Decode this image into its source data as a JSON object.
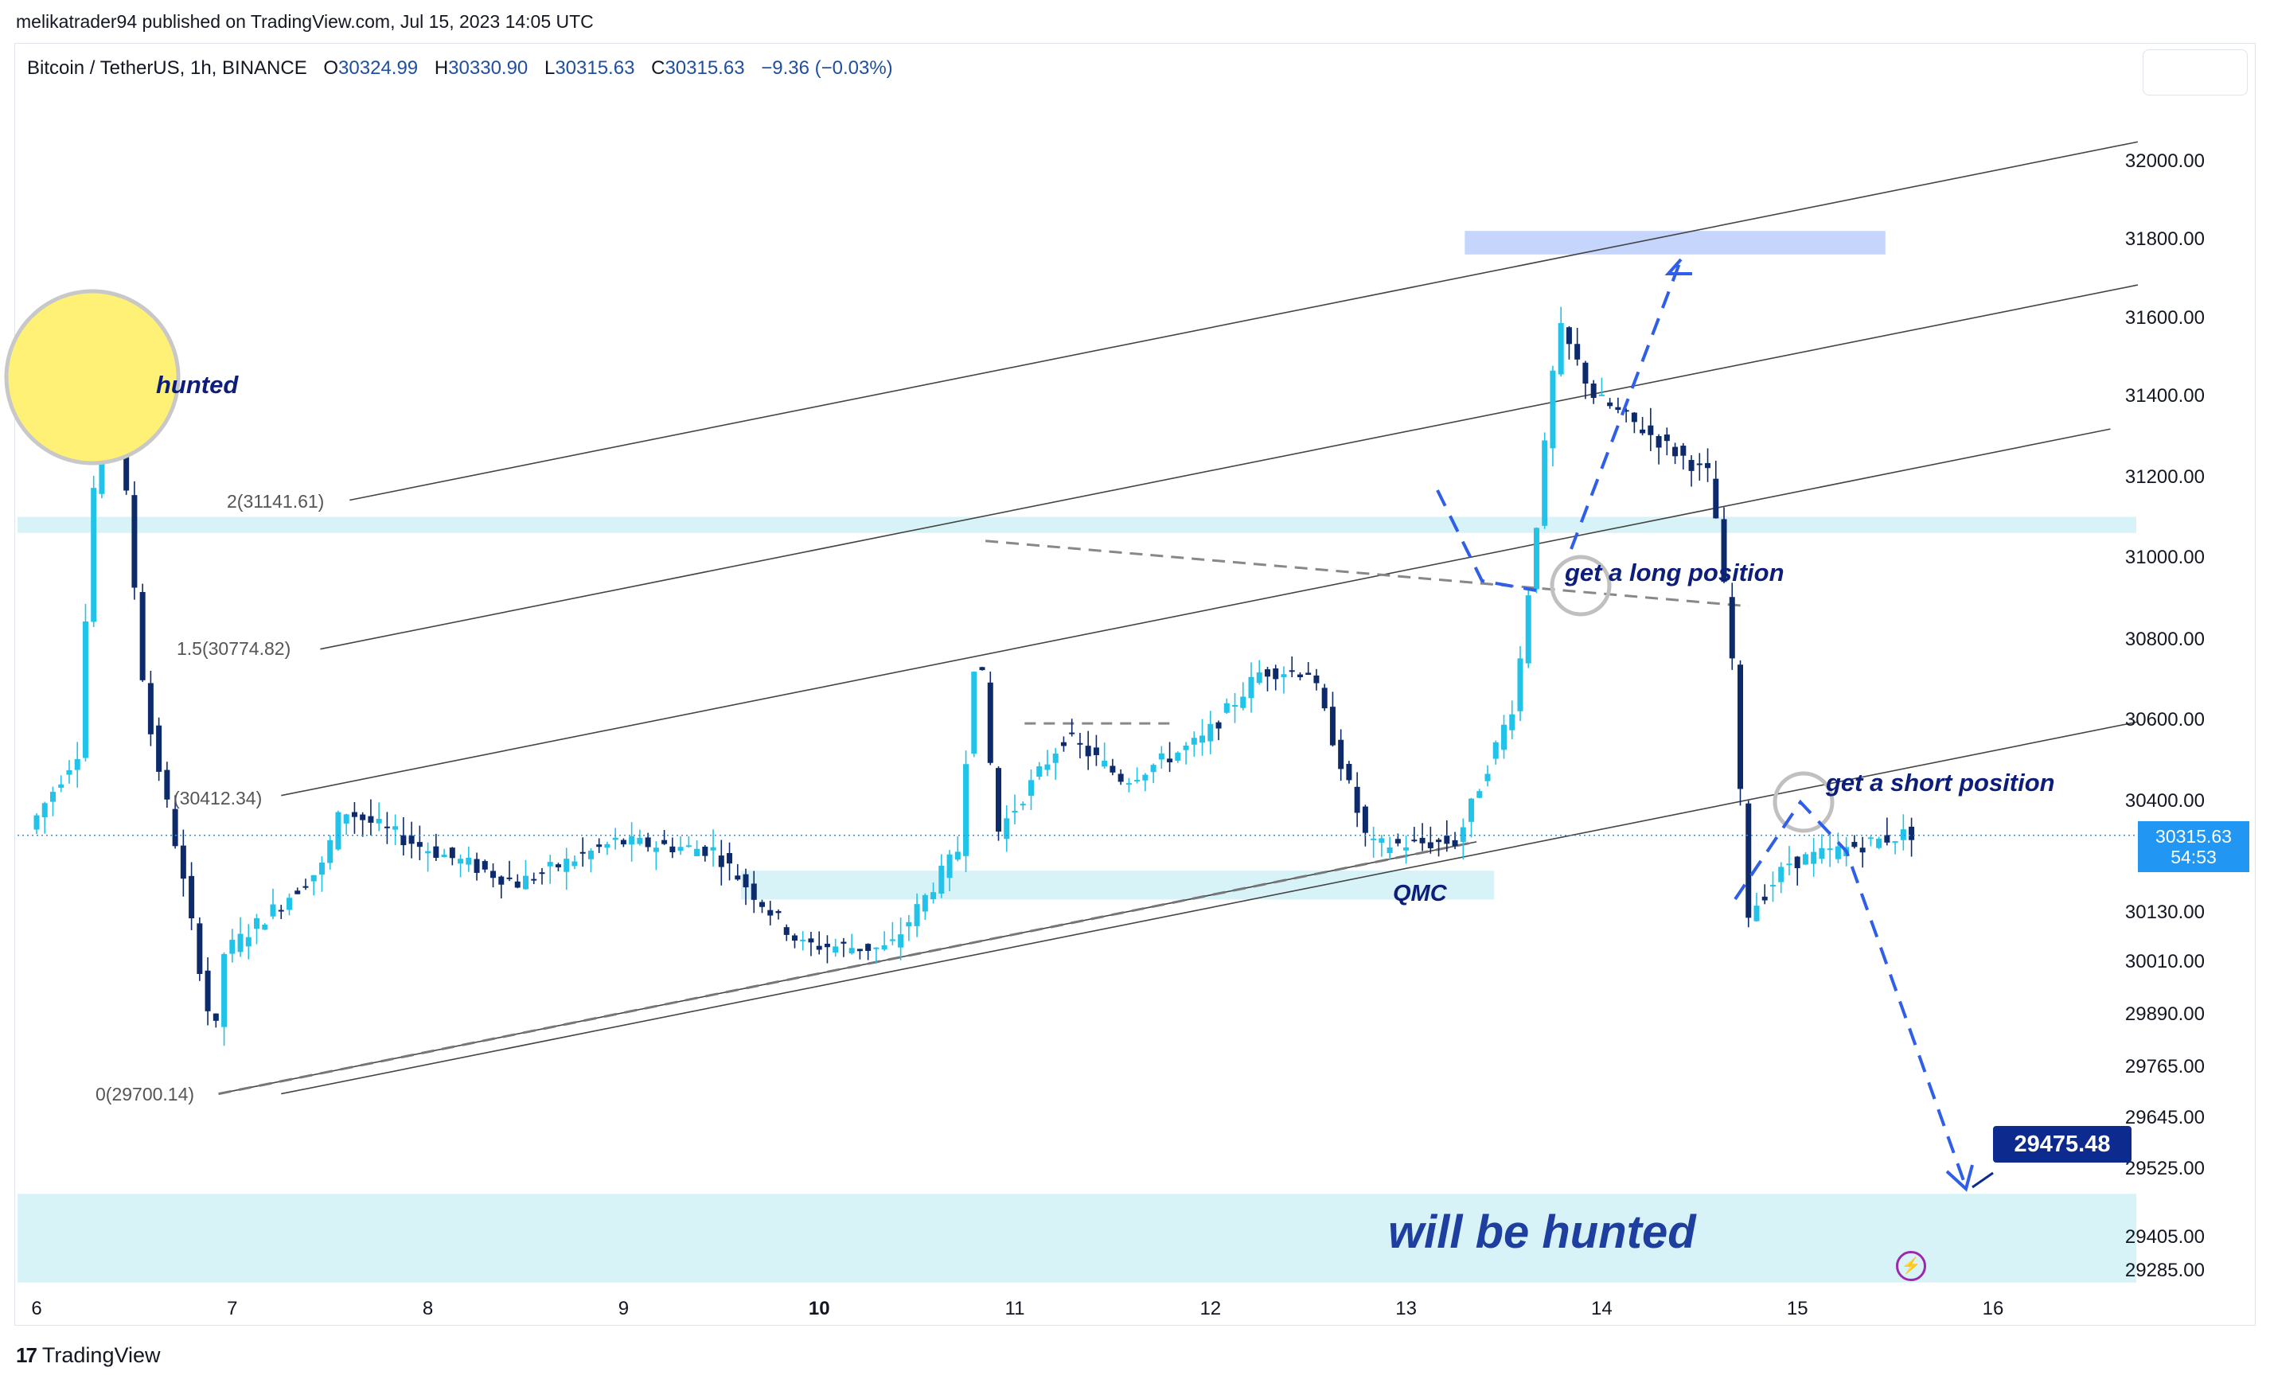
{
  "header": {
    "credit": "melikatrader94 published on TradingView.com, Jul 15, 2023 14:05 UTC"
  },
  "legend": {
    "symbol": "Bitcoin / TetherUS, 1h, BINANCE",
    "o_label": "O",
    "o_value": "30324.99",
    "h_label": "H",
    "h_value": "30330.90",
    "l_label": "L",
    "l_value": "30315.63",
    "c_label": "C",
    "c_value": "30315.63",
    "change": "−9.36 (−0.03%)"
  },
  "price_tag": {
    "price": "30315.63",
    "countdown": "54:53"
  },
  "target_tag": {
    "value": "29475.48"
  },
  "brand": {
    "name": "TradingView",
    "logo": "tv-logo-icon"
  },
  "colors": {
    "up": "#21c3e8",
    "down": "#0d2b6b",
    "zone": "#d8f3f8",
    "supply_zone": "#c5d5fb",
    "annotation_text": "#0d1d7a",
    "arrow_dash": "#2f5ee8",
    "price_line": "#2196f3",
    "highlight_circle": "#fff176"
  },
  "chart_data": {
    "type": "candlestick",
    "symbol": "Bitcoin / TetherUS",
    "timeframe": "1h",
    "exchange": "BINANCE",
    "x_tick_labels": [
      "6",
      "7",
      "8",
      "9",
      "10",
      "11",
      "12",
      "13",
      "14",
      "15",
      "16"
    ],
    "x_ticks": [
      6,
      7,
      8,
      9,
      10,
      11,
      12,
      13,
      14,
      15,
      16
    ],
    "y_tick_labels": [
      "29285.00",
      "29405.00",
      "29525.00",
      "29645.00",
      "29765.00",
      "29890.00",
      "30010.00",
      "30130.00",
      "30400.00",
      "30600.00",
      "30800.00",
      "31000.00",
      "31200.00",
      "31400.00",
      "31600.00",
      "31800.00",
      "32000.00"
    ],
    "y_ticks": [
      29285,
      29405,
      29525,
      29645,
      29765,
      29890,
      30010,
      30130,
      30400,
      30600,
      30800,
      31000,
      31200,
      31400,
      31600,
      31800,
      32000
    ],
    "axis_scale": "piecewise (as printed)",
    "current_price": 30315.63,
    "anchors_price_keypoints": [
      {
        "x": 6.0,
        "y": 30330
      },
      {
        "x": 6.25,
        "y": 30520
      },
      {
        "x": 6.35,
        "y": 31300
      },
      {
        "x": 6.4,
        "y": 31500
      },
      {
        "x": 6.5,
        "y": 31150
      },
      {
        "x": 6.6,
        "y": 30620
      },
      {
        "x": 6.75,
        "y": 30300
      },
      {
        "x": 6.95,
        "y": 29820
      },
      {
        "x": 7.0,
        "y": 30030
      },
      {
        "x": 7.5,
        "y": 30240
      },
      {
        "x": 7.6,
        "y": 30380
      },
      {
        "x": 8.0,
        "y": 30290
      },
      {
        "x": 8.5,
        "y": 30200
      },
      {
        "x": 9.0,
        "y": 30300
      },
      {
        "x": 9.5,
        "y": 30280
      },
      {
        "x": 9.95,
        "y": 30050
      },
      {
        "x": 10.4,
        "y": 30040
      },
      {
        "x": 10.75,
        "y": 30280
      },
      {
        "x": 10.85,
        "y": 30830
      },
      {
        "x": 10.95,
        "y": 30320
      },
      {
        "x": 11.3,
        "y": 30560
      },
      {
        "x": 11.6,
        "y": 30450
      },
      {
        "x": 12.0,
        "y": 30550
      },
      {
        "x": 12.3,
        "y": 30720
      },
      {
        "x": 12.55,
        "y": 30720
      },
      {
        "x": 12.85,
        "y": 30290
      },
      {
        "x": 13.3,
        "y": 30300
      },
      {
        "x": 13.6,
        "y": 30650
      },
      {
        "x": 13.7,
        "y": 31050
      },
      {
        "x": 13.82,
        "y": 31580
      },
      {
        "x": 14.0,
        "y": 31400
      },
      {
        "x": 14.3,
        "y": 31300
      },
      {
        "x": 14.6,
        "y": 31200
      },
      {
        "x": 14.72,
        "y": 30700
      },
      {
        "x": 14.78,
        "y": 30120
      },
      {
        "x": 15.0,
        "y": 30250
      },
      {
        "x": 15.6,
        "y": 30320
      }
    ],
    "channel_lines": [
      {
        "name": "0(29700.14)",
        "from": {
          "x": 6.93,
          "y": 29700.14
        },
        "to": {
          "x": 13.36,
          "y": 30300
        }
      },
      {
        "name": "1(30412.34)",
        "from": {
          "x": 7.25,
          "y": 30412.34
        }
      },
      {
        "name": "1.5(30774.82)",
        "from": {
          "x": 7.45,
          "y": 30774.82
        }
      },
      {
        "name": "2(31141.61)",
        "from": {
          "x": 7.6,
          "y": 31141.61
        }
      }
    ],
    "fib_labels": [
      "2(31141.61)",
      "1.5(30774.82)",
      "(30412.34)",
      "0(29700.14)"
    ],
    "zones": [
      {
        "label": "supply",
        "y_from": 31760,
        "y_to": 31820,
        "x_from": 13.3,
        "x_to": 15.45
      },
      {
        "label": "resistance",
        "y_from": 31060,
        "y_to": 31100
      },
      {
        "label": "QMC",
        "y_from": 30160,
        "y_to": 30230,
        "x_from": 9.6,
        "x_to": 13.45
      },
      {
        "label": "will be hunted",
        "y_from": 29240,
        "y_to": 29480
      }
    ],
    "annotations": [
      "hunted",
      "get a long position",
      "get a short position",
      "QMC",
      "will be hunted"
    ],
    "target": 29475.48,
    "grid": false,
    "legend_position": "top-left"
  },
  "annotations": {
    "hunted": "hunted",
    "long": "get a long position",
    "short": "get a short position",
    "qmc": "QMC",
    "will_be_hunted": "will be hunted"
  },
  "fib": {
    "f2": "2(31141.61)",
    "f15": "1.5(30774.82)",
    "f1": "(30412.34)",
    "f0": "0(29700.14)"
  }
}
